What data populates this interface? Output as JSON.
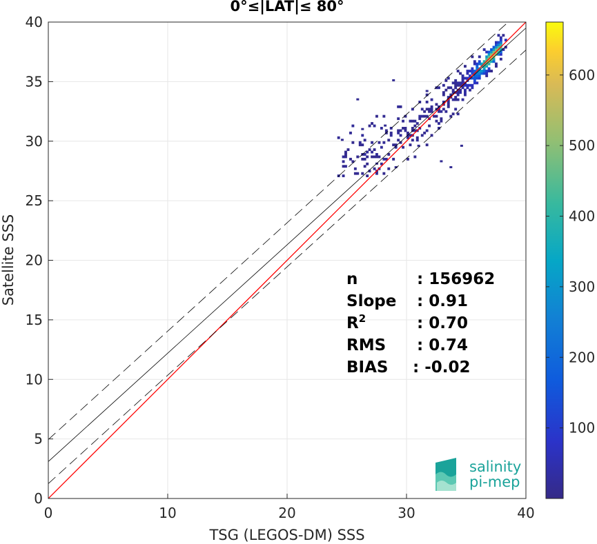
{
  "chart_data": {
    "type": "heatmap",
    "title": "0°≤|LAT|≤ 80°",
    "xlabel": "TSG (LEGOS-DM) SSS",
    "ylabel": "Satellite SSS",
    "xlim": [
      0,
      40
    ],
    "ylim": [
      0,
      40
    ],
    "x_ticks": [
      "0",
      "10",
      "20",
      "30",
      "40"
    ],
    "y_ticks": [
      "0",
      "5",
      "10",
      "15",
      "20",
      "25",
      "30",
      "35",
      "40"
    ],
    "grid": true,
    "colorbar": {
      "range": [
        0,
        675
      ],
      "ticks": [
        "100",
        "200",
        "300",
        "400",
        "500",
        "600"
      ],
      "colormap": "parula"
    },
    "lines": [
      {
        "kind": "one-to-one",
        "color": "#ff0000",
        "style": "solid",
        "slope": 1.0,
        "intercept": 0.0
      },
      {
        "kind": "regression",
        "color": "#000000",
        "style": "solid",
        "slope": 0.91,
        "intercept": 3.1
      },
      {
        "kind": "upper-bound",
        "color": "#000000",
        "style": "dashed",
        "slope": 0.91,
        "intercept": 4.95
      },
      {
        "kind": "lower-bound",
        "color": "#000000",
        "style": "dashed",
        "slope": 0.91,
        "intercept": 1.25
      }
    ],
    "density_ridge": [
      [
        28,
        28.3
      ],
      [
        30,
        30.4
      ],
      [
        32,
        32.5
      ],
      [
        34,
        34.3
      ],
      [
        35.5,
        35.6
      ],
      [
        36.5,
        36.4
      ],
      [
        37.3,
        37.4
      ]
    ],
    "peak_density": {
      "x": 36.8,
      "y": 36.8,
      "count": 650
    },
    "stats": [
      {
        "label": "n",
        "value": ": 156962"
      },
      {
        "label": "Slope",
        "value": ": 0.91"
      },
      {
        "label": "R",
        "sup": "2",
        "value": ": 0.70"
      },
      {
        "label": "RMS",
        "value": ": 0.74"
      },
      {
        "label": "BIAS",
        "value": ": -0.02"
      }
    ]
  },
  "logo": {
    "line1": "salinity",
    "line2": "pi-mep"
  }
}
